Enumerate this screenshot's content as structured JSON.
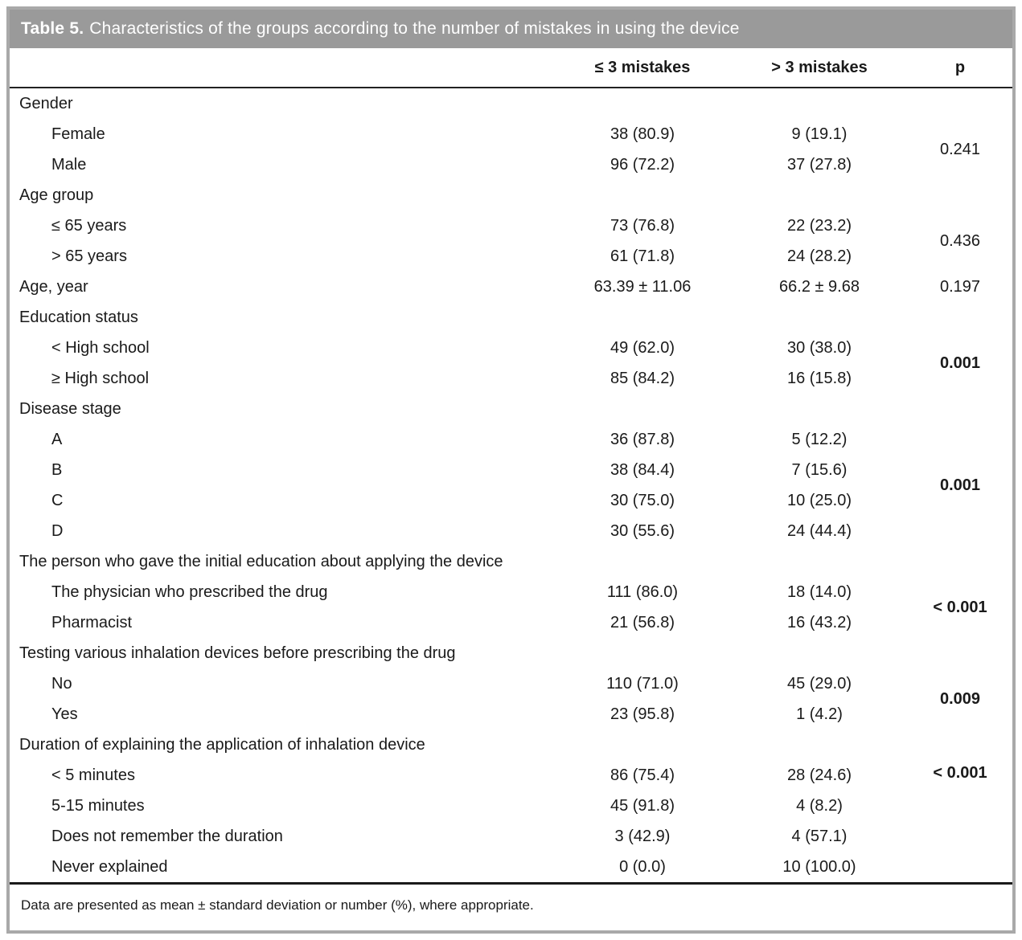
{
  "title": {
    "label": "Table 5.",
    "text": "Characteristics of the groups according to the number of mistakes in using the device"
  },
  "columns": {
    "group1": "≤ 3 mistakes",
    "group2": "> 3 mistakes",
    "p": "p"
  },
  "footnote": "Data are presented as mean ± standard deviation or number (%), where appropriate.",
  "colors": {
    "title_bar_bg": "#9a9a9a",
    "title_text": "#ffffff",
    "outer_border": "#a9a9a9",
    "rule": "#1a1a1a",
    "body_text": "#1a1a1a"
  },
  "table": {
    "rows": [
      {
        "label": "Gender",
        "indent": false
      },
      {
        "label": "Female",
        "indent": true,
        "c1": "38 (80.9)",
        "c2": "9 (19.1)",
        "p": "0.241",
        "p_span": 2,
        "p_bold": false
      },
      {
        "label": "Male",
        "indent": true,
        "c1": "96 (72.2)",
        "c2": "37 (27.8)"
      },
      {
        "label": "Age group",
        "indent": false
      },
      {
        "label": "≤ 65 years",
        "indent": true,
        "c1": "73 (76.8)",
        "c2": "22 (23.2)",
        "p": "0.436",
        "p_span": 2,
        "p_bold": false
      },
      {
        "label": "> 65 years",
        "indent": true,
        "c1": "61 (71.8)",
        "c2": "24 (28.2)"
      },
      {
        "label": "Age, year",
        "indent": false,
        "c1": "63.39 ± 11.06",
        "c2": "66.2 ± 9.68",
        "p": "0.197",
        "p_span": 1,
        "p_bold": false
      },
      {
        "label": "Education status",
        "indent": false
      },
      {
        "label": "< High school",
        "indent": true,
        "c1": "49 (62.0)",
        "c2": "30 (38.0)",
        "p": "0.001",
        "p_span": 2,
        "p_bold": true
      },
      {
        "label": "≥ High school",
        "indent": true,
        "c1": "85 (84.2)",
        "c2": "16 (15.8)"
      },
      {
        "label": "Disease stage",
        "indent": false
      },
      {
        "label": "A",
        "indent": true,
        "c1": "36 (87.8)",
        "c2": "5 (12.2)",
        "p": "0.001",
        "p_span": 4,
        "p_bold": true
      },
      {
        "label": "B",
        "indent": true,
        "c1": "38 (84.4)",
        "c2": "7 (15.6)"
      },
      {
        "label": "C",
        "indent": true,
        "c1": "30 (75.0)",
        "c2": "10 (25.0)"
      },
      {
        "label": "D",
        "indent": true,
        "c1": "30 (55.6)",
        "c2": "24 (44.4)"
      },
      {
        "label": "The person who gave the initial education about applying the device",
        "indent": false
      },
      {
        "label": "The physician who prescribed the drug",
        "indent": true,
        "c1": "111 (86.0)",
        "c2": "18 (14.0)",
        "p": "< 0.001",
        "p_span": 2,
        "p_bold": true
      },
      {
        "label": "Pharmacist",
        "indent": true,
        "c1": "21 (56.8)",
        "c2": "16 (43.2)"
      },
      {
        "label": "Testing various inhalation devices before prescribing the drug",
        "indent": false
      },
      {
        "label": "No",
        "indent": true,
        "c1": "110 (71.0)",
        "c2": "45 (29.0)",
        "p": "0.009",
        "p_span": 2,
        "p_bold": true
      },
      {
        "label": "Yes",
        "indent": true,
        "c1": "23 (95.8)",
        "c2": "1 (4.2)"
      },
      {
        "label": "Duration of explaining the application of inhalation device",
        "indent": false
      },
      {
        "label": "< 5 minutes",
        "indent": true,
        "c1": "86 (75.4)",
        "c2": "28 (24.6)",
        "p": "< 0.001",
        "p_span": 4,
        "p_bold": true,
        "p_align": "top"
      },
      {
        "label": "5-15 minutes",
        "indent": true,
        "c1": "45 (91.8)",
        "c2": "4 (8.2)"
      },
      {
        "label": "Does not remember the duration",
        "indent": true,
        "c1": "3 (42.9)",
        "c2": "4 (57.1)"
      },
      {
        "label": "Never explained",
        "indent": true,
        "c1": "0 (0.0)",
        "c2": "10 (100.0)"
      }
    ]
  }
}
